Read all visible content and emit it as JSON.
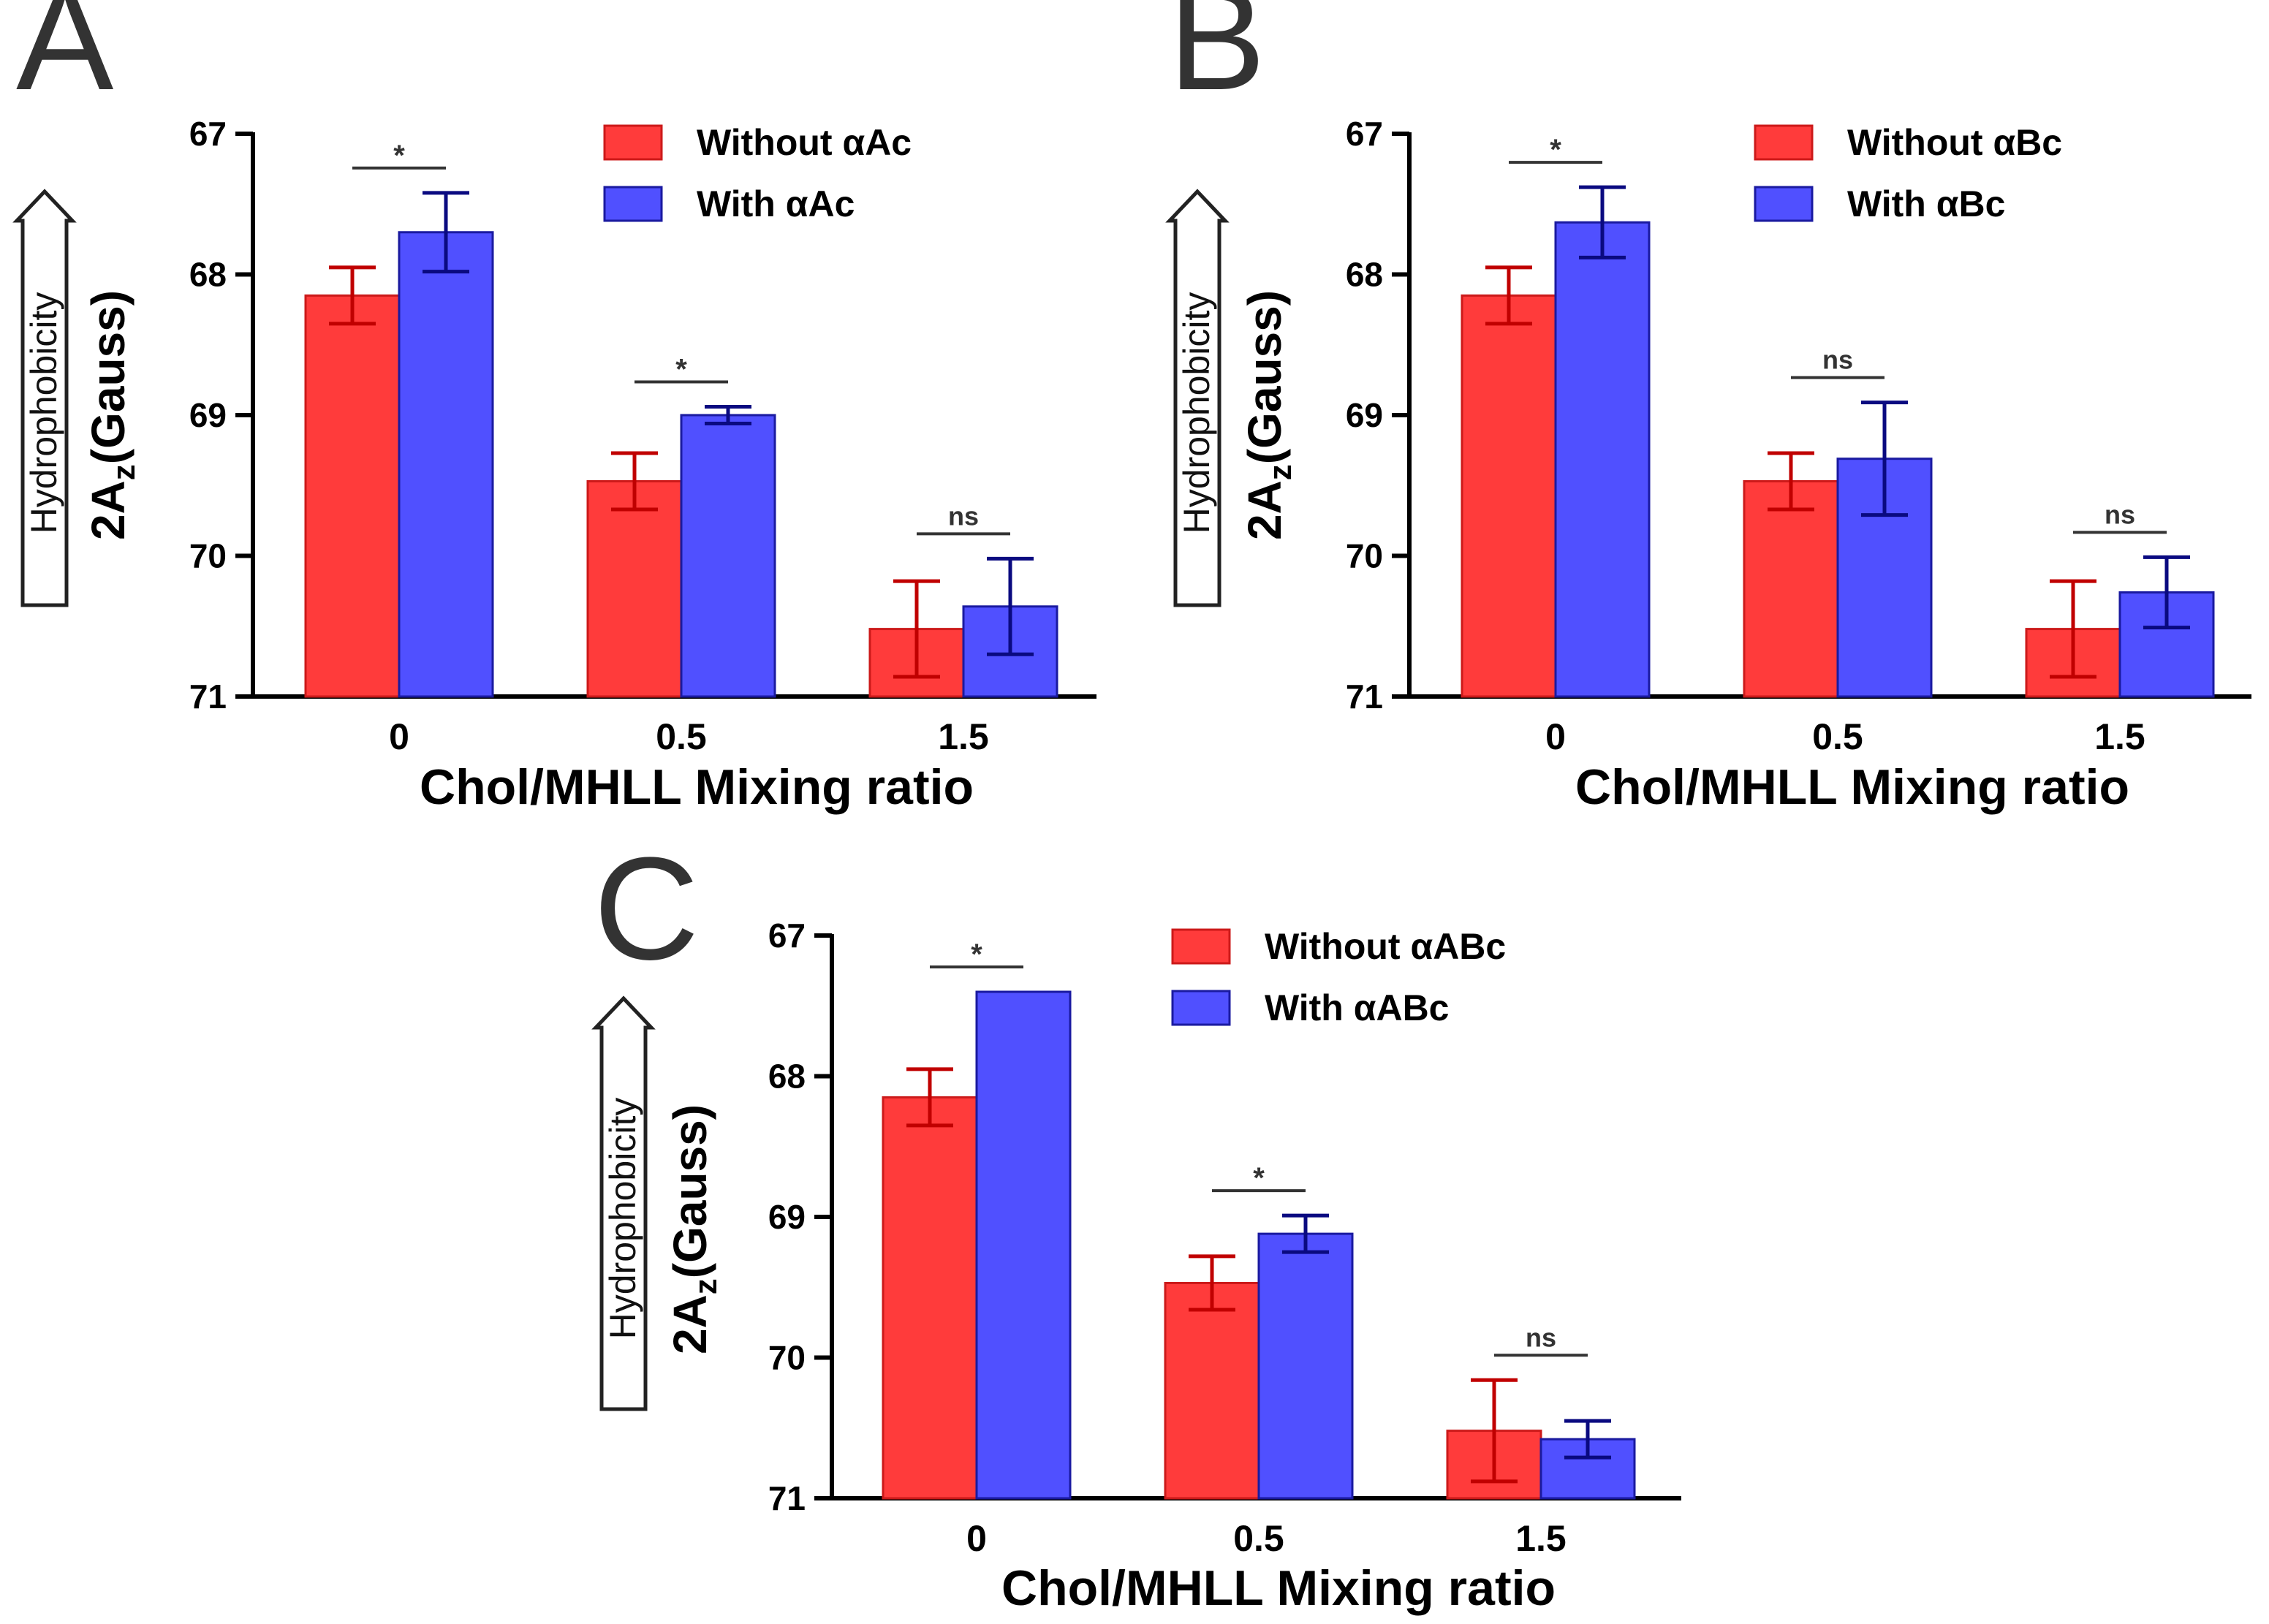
{
  "colors": {
    "without_fill": "#ff3b3b",
    "without_stroke": "#cc1a1a",
    "without_err": "#c00000",
    "with_fill": "#5050ff",
    "with_stroke": "#1a1aa0",
    "with_err": "#0a0a80",
    "axis": "#000000",
    "sig_line": "#333333"
  },
  "chart_data": [
    {
      "panel": "A",
      "type": "bar",
      "ylabel_main": "2A",
      "ylabel_sub": "z",
      "ylabel_tail": "(Gauss)",
      "side_arrow_label": "Hydrophobicity",
      "xlabel": "Chol/MHLL Mixing ratio",
      "categories": [
        "0",
        "0.5",
        "1.5"
      ],
      "ylim": [
        67,
        71
      ],
      "yticks": [
        "67",
        "68",
        "69",
        "70",
        "71"
      ],
      "inverted_y": true,
      "series": [
        {
          "name": "Without αAc",
          "key": "without",
          "values": [
            68.15,
            69.47,
            70.52
          ],
          "errors": [
            0.2,
            0.2,
            0.34
          ]
        },
        {
          "name": "With αAc",
          "key": "with",
          "values": [
            67.7,
            69.0,
            70.36
          ],
          "errors": [
            0.28,
            0.06,
            0.34
          ]
        }
      ],
      "significance": [
        "*",
        "*",
        "ns"
      ]
    },
    {
      "panel": "B",
      "type": "bar",
      "ylabel_main": "2A",
      "ylabel_sub": "z",
      "ylabel_tail": "(Gauss)",
      "side_arrow_label": "Hydrophobicity",
      "xlabel": "Chol/MHLL Mixing ratio",
      "categories": [
        "0",
        "0.5",
        "1.5"
      ],
      "ylim": [
        67,
        71
      ],
      "yticks": [
        "67",
        "68",
        "69",
        "70",
        "71"
      ],
      "inverted_y": true,
      "series": [
        {
          "name": "Without αBc",
          "key": "without",
          "values": [
            68.15,
            69.47,
            70.52
          ],
          "errors": [
            0.2,
            0.2,
            0.34
          ]
        },
        {
          "name": "With αBc",
          "key": "with",
          "values": [
            67.63,
            69.31,
            70.26
          ],
          "errors": [
            0.25,
            0.4,
            0.25
          ]
        }
      ],
      "significance": [
        "*",
        "ns",
        "ns"
      ]
    },
    {
      "panel": "C",
      "type": "bar",
      "ylabel_main": "2A",
      "ylabel_sub": "z",
      "ylabel_tail": "(Gauss)",
      "side_arrow_label": "Hydrophobicity",
      "xlabel": "Chol/MHLL Mixing ratio",
      "categories": [
        "0",
        "0.5",
        "1.5"
      ],
      "ylim": [
        67,
        71
      ],
      "yticks": [
        "67",
        "68",
        "69",
        "70",
        "71"
      ],
      "inverted_y": true,
      "series": [
        {
          "name": "Without αABc",
          "key": "without",
          "values": [
            68.15,
            69.47,
            70.52
          ],
          "errors": [
            0.2,
            0.19,
            0.36
          ]
        },
        {
          "name": "With αABc",
          "key": "with",
          "values": [
            67.4,
            69.12,
            70.58
          ],
          "errors": [
            0.0,
            0.13,
            0.13
          ]
        }
      ],
      "significance": [
        "*",
        "*",
        "ns"
      ]
    }
  ]
}
